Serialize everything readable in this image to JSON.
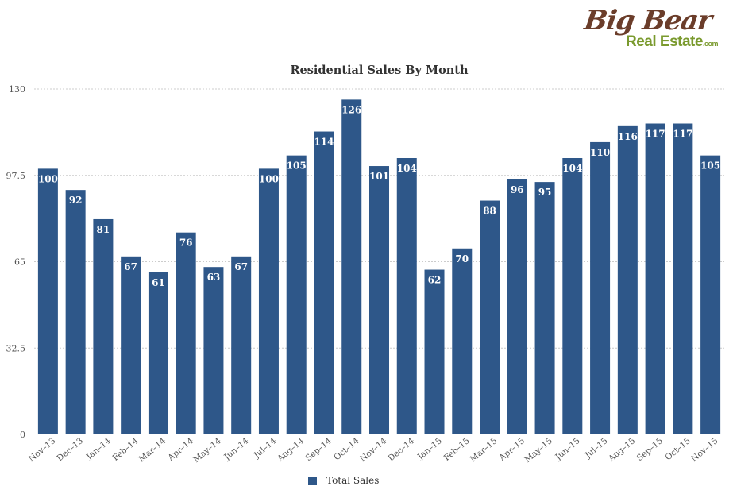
{
  "logo": {
    "line1": "Big Bear",
    "line2": "Real Estate",
    "suffix": ".com"
  },
  "colors": {
    "bar": "#2e5789",
    "grid": "#cccccc",
    "text": "#333333"
  },
  "chart_data": {
    "type": "bar",
    "title": "Residential Sales By Month",
    "xlabel": "",
    "ylabel": "",
    "ylim": [
      0,
      130
    ],
    "yticks": [
      "0",
      "32.5",
      "65",
      "97.5",
      "130"
    ],
    "ytick_values": [
      0,
      32.5,
      65,
      97.5,
      130
    ],
    "grid": true,
    "legend_position": "bottom-center",
    "categories": [
      "Nov–13",
      "Dec–13",
      "Jan–14",
      "Feb–14",
      "Mar–14",
      "Apr–14",
      "May–14",
      "Jun–14",
      "Jul–14",
      "Aug–14",
      "Sep–14",
      "Oct–14",
      "Nov–14",
      "Dec–14",
      "Jan–15",
      "Feb–15",
      "Mar–15",
      "Apr–15",
      "May–15",
      "Jun–15",
      "Jul–15",
      "Aug–15",
      "Sep–15",
      "Oct–15",
      "Nov–15"
    ],
    "series": [
      {
        "name": "Total Sales",
        "values": [
          100,
          92,
          81,
          67,
          61,
          76,
          63,
          67,
          100,
          105,
          114,
          126,
          101,
          104,
          62,
          70,
          88,
          96,
          95,
          104,
          110,
          116,
          117,
          117,
          105
        ]
      }
    ]
  }
}
